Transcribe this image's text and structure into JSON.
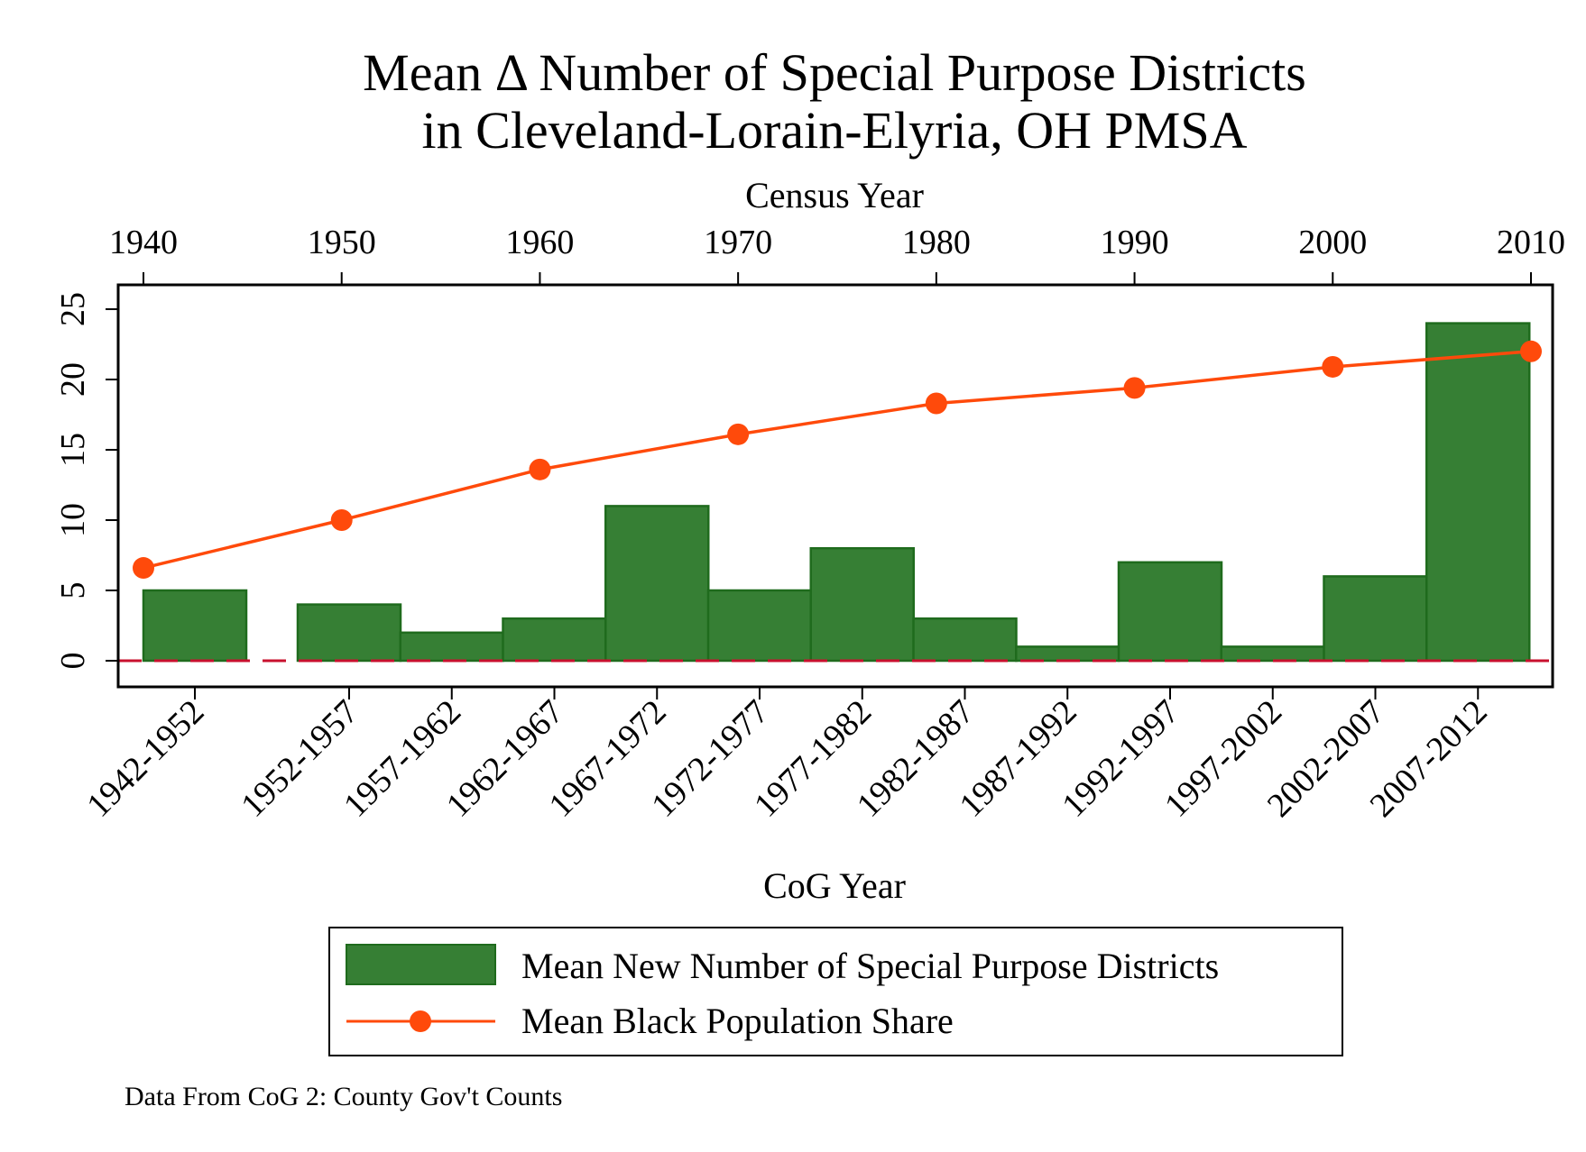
{
  "chart_data": {
    "type": "bar",
    "title_lines": [
      "Mean Δ Number of Special Purpose Districts",
      "in Cleveland-Lorain-Elyria, OH PMSA"
    ],
    "top_axis": {
      "label": "Census Year",
      "ticks": [
        "1940",
        "1950",
        "1960",
        "1970",
        "1980",
        "1990",
        "2000",
        "2010"
      ],
      "range": [
        1940,
        2010
      ]
    },
    "xlabel": "CoG Year",
    "ylabel": "",
    "ylim": [
      0,
      25
    ],
    "y_ticks": [
      "0",
      "5",
      "10",
      "15",
      "20",
      "25"
    ],
    "bars": [
      {
        "label": "1942-1952",
        "value": 5
      },
      {
        "label": "1952-1957",
        "value": 4
      },
      {
        "label": "1957-1962",
        "value": 2
      },
      {
        "label": "1962-1967",
        "value": 3
      },
      {
        "label": "1967-1972",
        "value": 11
      },
      {
        "label": "1972-1977",
        "value": 5
      },
      {
        "label": "1977-1982",
        "value": 8
      },
      {
        "label": "1982-1987",
        "value": 3
      },
      {
        "label": "1987-1992",
        "value": 1
      },
      {
        "label": "1992-1997",
        "value": 7
      },
      {
        "label": "1997-2002",
        "value": 1
      },
      {
        "label": "2002-2007",
        "value": 6
      },
      {
        "label": "2007-2012",
        "value": 24
      }
    ],
    "line": {
      "x": [
        1940,
        1950,
        1960,
        1970,
        1980,
        1990,
        2000,
        2010
      ],
      "y": [
        6.6,
        10.0,
        13.6,
        16.1,
        18.3,
        19.4,
        20.9,
        22.0
      ]
    },
    "reference_line": {
      "y": 0,
      "style": "dashed"
    },
    "legend": {
      "placement": "bottom",
      "entries": [
        "Mean New Number of Special Purpose Districts",
        "Mean Black Population Share"
      ]
    },
    "note": "Data From CoG 2: County Gov't Counts",
    "colors": {
      "bar_fill": "#367f34",
      "bar_edge": "#1f6b1d",
      "line": "#ff4a0b",
      "reference": "#c8102e"
    }
  }
}
